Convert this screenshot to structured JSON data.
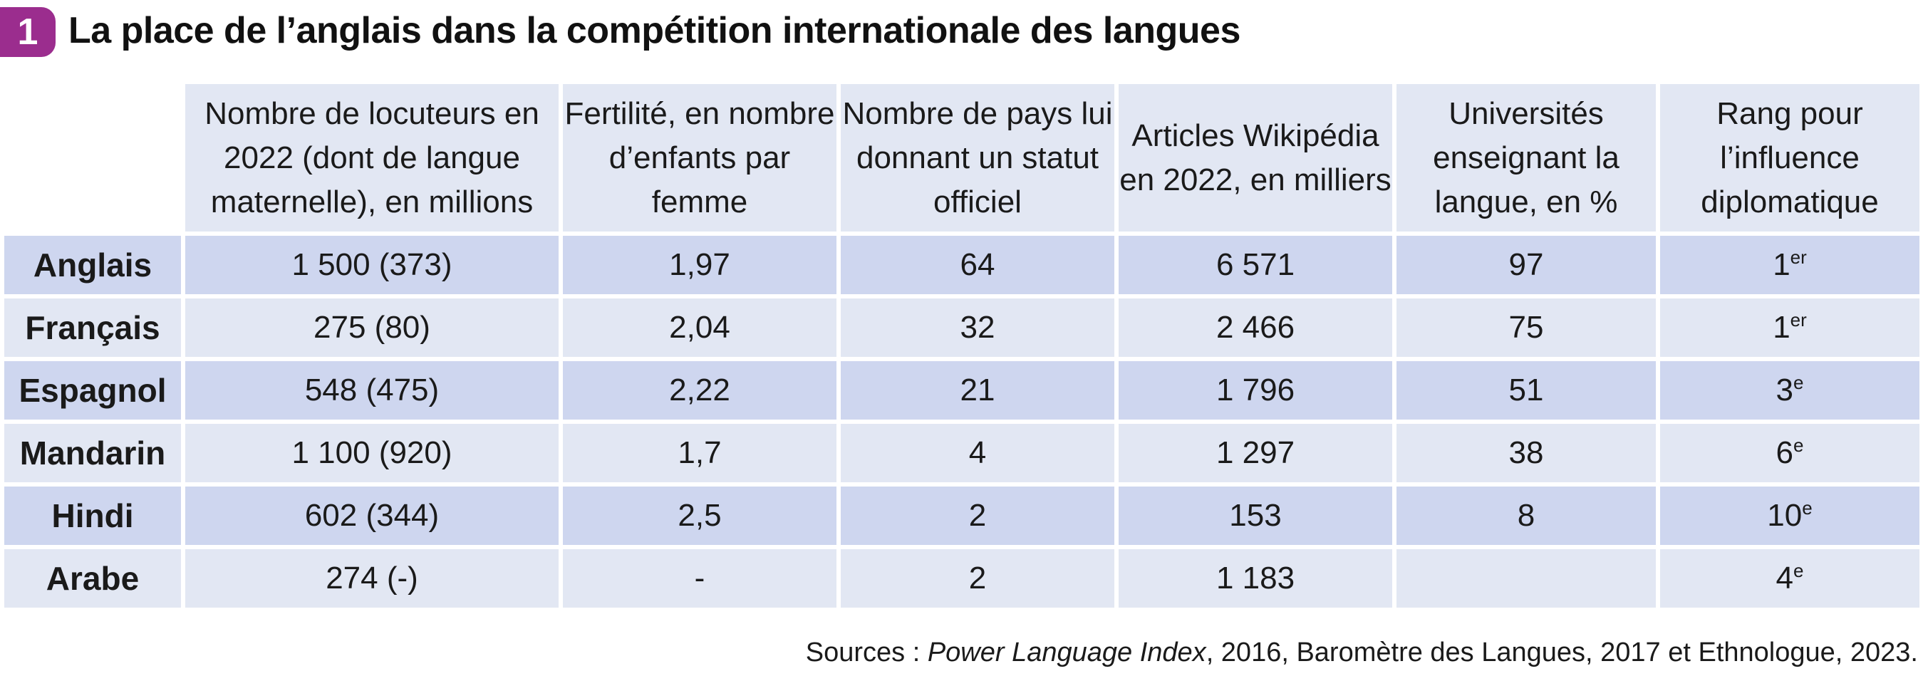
{
  "document": {
    "badge_number": "1",
    "title": "La place de l’anglais dans la compétition internationale des langues",
    "colors": {
      "badge": "#9b2d8e",
      "row_dark": "#ced6ef",
      "row_light": "#e2e7f3"
    }
  },
  "table": {
    "headers": [
      "Nombre de locuteurs en 2022 (dont de langue maternelle), en millions",
      "Fertilité, en nombre d’enfants par femme",
      "Nombre de pays lui donnant un statut officiel",
      "Articles Wikipédia en 2022, en milliers",
      "Universités enseignant la langue, en %",
      "Rang pour l’influence diplomatique"
    ],
    "rows": [
      {
        "language": "Anglais",
        "speakers": "1 500 (373)",
        "fertility": "1,97",
        "countries": "64",
        "wikipedia": "6 571",
        "universities": "97",
        "rank_num": "1",
        "rank_sup": "er"
      },
      {
        "language": "Français",
        "speakers": "275 (80)",
        "fertility": "2,04",
        "countries": "32",
        "wikipedia": "2 466",
        "universities": "75",
        "rank_num": "1",
        "rank_sup": "er"
      },
      {
        "language": "Espagnol",
        "speakers": "548 (475)",
        "fertility": "2,22",
        "countries": "21",
        "wikipedia": "1 796",
        "universities": "51",
        "rank_num": "3",
        "rank_sup": "e"
      },
      {
        "language": "Mandarin",
        "speakers": "1 100 (920)",
        "fertility": "1,7",
        "countries": "4",
        "wikipedia": "1 297",
        "universities": "38",
        "rank_num": "6",
        "rank_sup": "e"
      },
      {
        "language": "Hindi",
        "speakers": "602 (344)",
        "fertility": "2,5",
        "countries": "2",
        "wikipedia": "153",
        "universities": "8",
        "rank_num": "10",
        "rank_sup": "e"
      },
      {
        "language": "Arabe",
        "speakers": "274 (-)",
        "fertility": "-",
        "countries": "2",
        "wikipedia": "1 183",
        "universities": "",
        "rank_num": "4",
        "rank_sup": "e"
      }
    ]
  },
  "sources": {
    "prefix": "Sources : ",
    "italic": "Power Language Index",
    "suffix": ", 2016, Baromètre des Langues, 2017 et Ethnologue, 2023."
  }
}
